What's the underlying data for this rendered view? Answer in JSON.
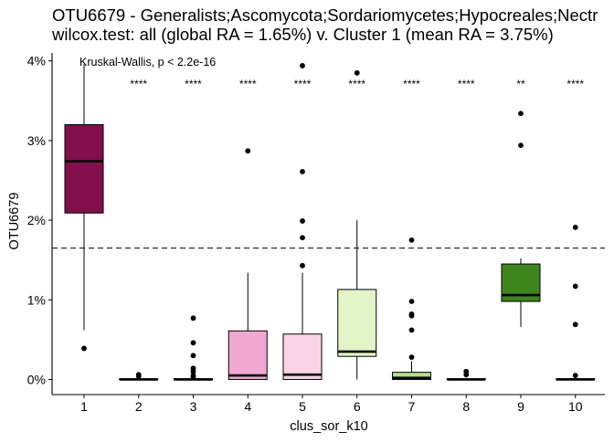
{
  "chart_data": {
    "type": "boxplot",
    "title_line1": "OTU6679 - Generalists;Ascomycota;Sordariomycetes;Hypocreales;Nectr",
    "title_line2": "wilcox.test: all (global RA = 1.65%) v. Cluster 1 (mean RA = 3.75%)",
    "xlabel": "clus_sor_k10",
    "ylabel": "OTU6679",
    "ylim": [
      -0.0019,
      0.041
    ],
    "yticks": [
      0,
      0.01,
      0.02,
      0.03,
      0.04
    ],
    "ytick_labels": [
      "0%",
      "1%",
      "2%",
      "3%",
      "4%"
    ],
    "reference_line": {
      "y": 0.0165,
      "style": "dashed"
    },
    "global_test_label": "Kruskal-Wallis, p < 2.2e-16",
    "grid": false,
    "categories": [
      "1",
      "2",
      "3",
      "4",
      "5",
      "6",
      "7",
      "8",
      "9",
      "10"
    ],
    "boxes": [
      {
        "category": "1",
        "fill": "#810F4C",
        "q1": 0.0209,
        "median": 0.0274,
        "q3": 0.032,
        "whisker_low": 0.0062,
        "whisker_high": 0.0396,
        "outliers": [
          0.0039
        ],
        "significance": ""
      },
      {
        "category": "2",
        "fill": "#E3ACCF",
        "q1": 0.0,
        "median": 0.0,
        "q3": 0.0001,
        "whisker_low": 0.0,
        "whisker_high": 0.0002,
        "outliers": [
          0.0006,
          0.0004
        ],
        "significance": "****"
      },
      {
        "category": "3",
        "fill": "#F4C4E2",
        "q1": 0.0,
        "median": 0.0,
        "q3": 0.0001,
        "whisker_low": 0.0,
        "whisker_high": 0.0002,
        "outliers": [
          0.0077,
          0.0046,
          0.003,
          0.0014,
          0.001,
          0.0005,
          0.0003
        ],
        "significance": "****"
      },
      {
        "category": "4",
        "fill": "#EFA8D0",
        "q1": 0.0,
        "median": 0.0005,
        "q3": 0.0061,
        "whisker_low": 0.0,
        "whisker_high": 0.0134,
        "outliers": [
          0.0287
        ],
        "significance": "****"
      },
      {
        "category": "5",
        "fill": "#FAD4E6",
        "q1": 0.0,
        "median": 0.0006,
        "q3": 0.0057,
        "whisker_low": 0.0,
        "whisker_high": 0.0134,
        "outliers": [
          0.0394,
          0.0261,
          0.0199,
          0.0178,
          0.0143
        ],
        "significance": "****"
      },
      {
        "category": "6",
        "fill": "#E3F4C6",
        "q1": 0.0029,
        "median": 0.0035,
        "q3": 0.0113,
        "whisker_low": 0.0,
        "whisker_high": 0.02,
        "outliers": [
          0.0385
        ],
        "significance": "****"
      },
      {
        "category": "7",
        "fill": "#B4DE82",
        "q1": 0.0,
        "median": 0.0002,
        "q3": 0.0009,
        "whisker_low": 0.0,
        "whisker_high": 0.0023,
        "outliers": [
          0.0175,
          0.0098,
          0.0082,
          0.008,
          0.0062,
          0.0028
        ],
        "significance": "****"
      },
      {
        "category": "8",
        "fill": "#DDEFC6",
        "q1": 0.0,
        "median": 0.0,
        "q3": 0.0001,
        "whisker_low": 0.0,
        "whisker_high": 0.0002,
        "outliers": [
          0.001,
          0.0006
        ],
        "significance": "****"
      },
      {
        "category": "9",
        "fill": "#3E851D",
        "q1": 0.0098,
        "median": 0.0106,
        "q3": 0.0145,
        "whisker_low": 0.0066,
        "whisker_high": 0.0152,
        "outliers": [
          0.0334,
          0.0294
        ],
        "significance": "**"
      },
      {
        "category": "10",
        "fill": "#B8DE8E",
        "q1": 0.0,
        "median": 0.0,
        "q3": 0.0001,
        "whisker_low": 0.0,
        "whisker_high": 0.0002,
        "outliers": [
          0.0191,
          0.0117,
          0.0069,
          0.0005
        ],
        "significance": "****"
      }
    ]
  }
}
